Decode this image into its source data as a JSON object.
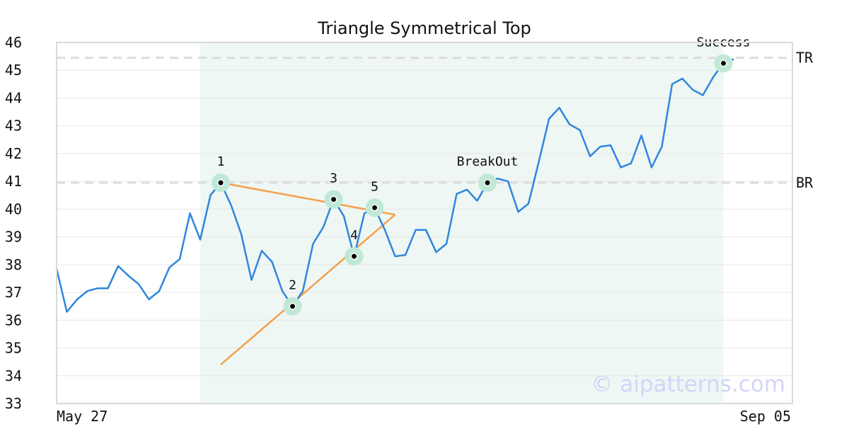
{
  "chart_data": {
    "type": "line",
    "title": "Triangle Symmetrical Top",
    "watermark": "© aipatterns.com",
    "xlabel": "",
    "ylabel": "",
    "x_tick_labels": [
      "May 27",
      "Sep 05"
    ],
    "ylim": [
      33,
      46
    ],
    "y_ticks": [
      33,
      34,
      35,
      36,
      37,
      38,
      39,
      40,
      41,
      42,
      43,
      44,
      45,
      46
    ],
    "grid": true,
    "colors": {
      "price": "#2f86dd",
      "trendline": "#f5a04a",
      "highlight_region": "#eef7f4",
      "marker_halo": "#bfe9d6",
      "level_line": "#dddddd",
      "watermark": "#d4d4f7"
    },
    "series": [
      {
        "values": [
          37.85,
          36.3,
          36.75,
          37.05,
          37.15,
          37.15,
          37.95,
          37.6,
          37.3,
          36.75,
          37.05,
          37.9,
          38.2,
          39.85,
          38.9,
          40.5,
          40.95,
          40.15,
          39.1,
          37.45,
          38.5,
          38.1,
          37.05,
          36.5,
          37.05,
          38.75,
          39.35,
          40.35,
          39.75,
          38.3,
          39.85,
          40.05,
          39.25,
          38.3,
          38.35,
          39.25,
          39.25,
          38.45,
          38.75,
          40.55,
          40.7,
          40.3,
          40.95,
          41.1,
          41.0,
          39.9,
          40.2,
          41.7,
          43.25,
          43.65,
          43.05,
          42.85,
          41.9,
          42.25,
          42.3,
          41.5,
          41.65,
          42.65,
          41.5,
          42.25,
          44.5,
          44.7,
          44.3,
          44.1,
          44.75,
          45.25,
          45.4
        ]
      }
    ],
    "highlight_region": {
      "x_start": 14,
      "x_end": 65
    },
    "levels": [
      {
        "label": "TR",
        "value": 45.45
      },
      {
        "label": "BR",
        "value": 40.95
      }
    ],
    "trendlines": [
      {
        "from": [
          16,
          40.95
        ],
        "to": [
          33,
          39.8
        ]
      },
      {
        "from": [
          16,
          34.4
        ],
        "to": [
          33,
          39.8
        ]
      }
    ],
    "annotations": [
      {
        "label": "1",
        "x": 16,
        "y": 40.95
      },
      {
        "label": "2",
        "x": 23,
        "y": 36.5
      },
      {
        "label": "3",
        "x": 27,
        "y": 40.35
      },
      {
        "label": "4",
        "x": 29,
        "y": 38.3
      },
      {
        "label": "5",
        "x": 31,
        "y": 40.05
      },
      {
        "label": "BreakOut",
        "x": 42,
        "y": 40.95
      },
      {
        "label": "Success",
        "x": 65,
        "y": 45.25
      }
    ]
  }
}
